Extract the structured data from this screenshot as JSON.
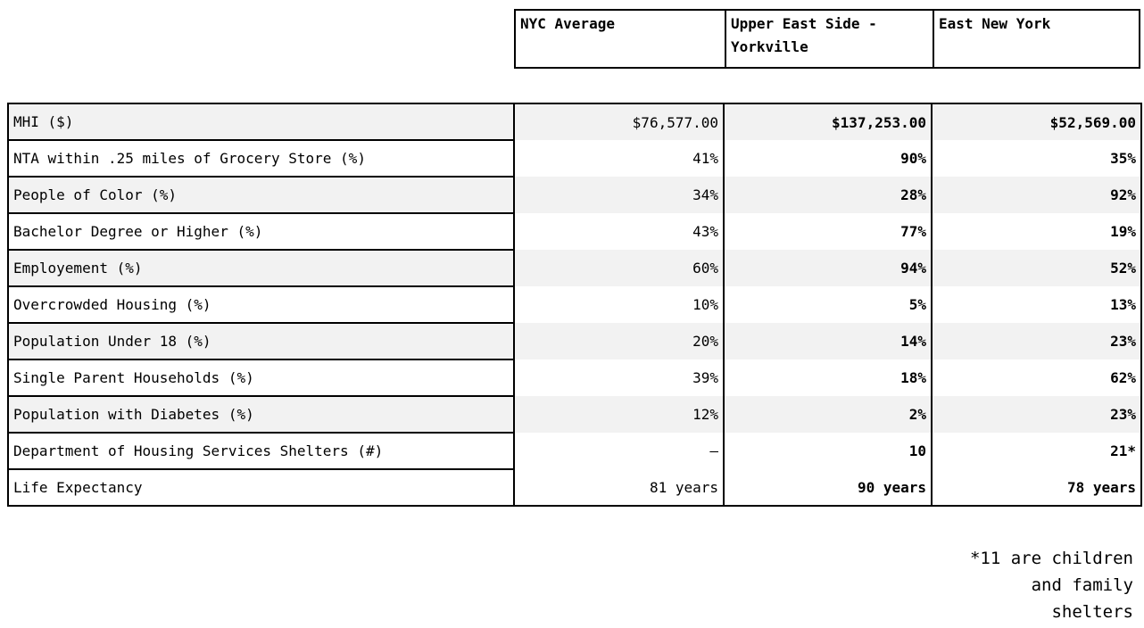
{
  "chart_data": {
    "type": "table",
    "title": "",
    "columns": [
      "NYC Average",
      "Upper East Side - Yorkville",
      "East New York"
    ],
    "row_labels": [
      "MHI ($)",
      "NTA within .25 miles of Grocery Store (%)",
      "People of Color (%)",
      "Bachelor Degree or Higher (%)",
      "Employement (%)",
      "Overcrowded Housing (%)",
      "Population Under 18 (%)",
      "Single Parent Households (%)",
      "Population with Diabetes (%)",
      "Department of Housing Services Shelters (#)",
      "Life Expectancy"
    ],
    "series": [
      {
        "name": "NYC Average",
        "values": [
          "$76,577.00",
          "41%",
          "34%",
          "43%",
          "60%",
          "10%",
          "20%",
          "39%",
          "12%",
          "–",
          "81 years"
        ]
      },
      {
        "name": "Upper East Side - Yorkville",
        "values": [
          "$137,253.00",
          "90%",
          "28%",
          "77%",
          "94%",
          "5%",
          "14%",
          "18%",
          "2%",
          "10",
          "90 years"
        ]
      },
      {
        "name": "East New York",
        "values": [
          "$52,569.00",
          "35%",
          "92%",
          "19%",
          "52%",
          "13%",
          "23%",
          "62%",
          "23%",
          "21*",
          "78 years"
        ]
      }
    ],
    "footnote_lines": [
      "*11 are children",
      "and family",
      "shelters"
    ],
    "layout": {
      "value_alignment": "right",
      "bold_value_columns": [
        "Upper East Side - Yorkville",
        "East New York"
      ],
      "striped_row_indices": [
        0,
        2,
        4,
        6,
        8
      ],
      "stripe_color": "#f2f2f2",
      "border_color": "#000000",
      "legend_position": "top-header-row",
      "grid": "partial"
    }
  }
}
